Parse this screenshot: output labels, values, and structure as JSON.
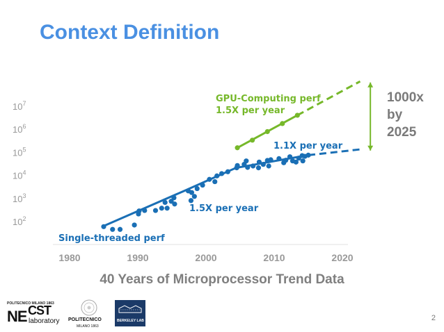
{
  "slide": {
    "title": "Context Definition",
    "subtitle": "40 Years of Microprocessor Trend Data",
    "callout_lines": [
      "1000x",
      "by",
      "2025"
    ],
    "page_number": "2"
  },
  "logos": {
    "necst_top": "POLITECNICO MILANO 1863",
    "necst_ne": "NE",
    "necst_cst": "CST",
    "necst_lab": "laboratory",
    "polimi_name": "POLITECNICO",
    "polimi_sub": "MILANO 1863",
    "berkeley": "BERKELEY LAB"
  },
  "chart_data": {
    "type": "scatter",
    "title": "",
    "xlabel": "",
    "ylabel": "",
    "xlim": [
      1975,
      2025
    ],
    "ylim": [
      1.5,
      7.5
    ],
    "y_scale": "log10",
    "x_ticks": [
      1980,
      1990,
      2000,
      2010,
      2020
    ],
    "x_tick_labels": [
      "1980",
      "1990",
      "2000",
      "2010",
      "2020"
    ],
    "y_ticks": [
      2,
      3,
      4,
      5,
      6,
      7
    ],
    "y_tick_labels": [
      {
        "base": "10",
        "exp": "2"
      },
      {
        "base": "10",
        "exp": "3"
      },
      {
        "base": "10",
        "exp": "4"
      },
      {
        "base": "10",
        "exp": "5"
      },
      {
        "base": "10",
        "exp": "6"
      },
      {
        "base": "10",
        "exp": "7"
      }
    ],
    "colors": {
      "gpu": "#76b82a",
      "cpu": "#1a6fb5",
      "gpu_label": "#76b82a",
      "cpu_label": "#1a6fb5",
      "tick": "#999999"
    },
    "annotations": [
      {
        "text": "GPU-Computing perf",
        "color": "gpu"
      },
      {
        "text": "1.5X per year",
        "color": "gpu"
      },
      {
        "text": "1.1X per year",
        "color": "cpu"
      },
      {
        "text": "1.5X per year",
        "color": "cpu"
      },
      {
        "text": "Single-threaded perf",
        "color": "cpu"
      }
    ],
    "series": [
      {
        "name": "GPU-Computing perf",
        "points": [
          [
            2004.6,
            5.17
          ],
          [
            2006.8,
            5.5
          ],
          [
            2009,
            5.87
          ],
          [
            2011.2,
            6.22
          ],
          [
            2013.4,
            6.58
          ]
        ],
        "trend": [
          [
            2004.6,
            5.17
          ],
          [
            2013.4,
            6.58
          ]
        ],
        "projection": [
          [
            2013.4,
            6.58
          ],
          [
            2022.6,
            8.05
          ]
        ]
      },
      {
        "name": "Single-threaded perf",
        "points": [
          [
            1985,
            1.75
          ],
          [
            1986.3,
            1.63
          ],
          [
            1987.4,
            1.63
          ],
          [
            1989.5,
            1.82
          ],
          [
            1990.1,
            2.3
          ],
          [
            1990.2,
            2.43
          ],
          [
            1991,
            2.45
          ],
          [
            1992.6,
            2.45
          ],
          [
            1993.5,
            2.55
          ],
          [
            1994,
            2.8
          ],
          [
            1994.3,
            2.55
          ],
          [
            1994.9,
            2.85
          ],
          [
            1995.4,
            2.73
          ],
          [
            1995.3,
            3.0
          ],
          [
            1997.4,
            3.3
          ],
          [
            1997.9,
            3.23
          ],
          [
            1997.8,
            2.88
          ],
          [
            1998.3,
            3.06
          ],
          [
            1998.7,
            3.4
          ],
          [
            1999.5,
            3.55
          ],
          [
            2000.5,
            3.8
          ],
          [
            2001.3,
            3.7
          ],
          [
            2001.6,
            3.95
          ],
          [
            2002.3,
            4.05
          ],
          [
            2003.2,
            4.13
          ],
          [
            2004.5,
            4.3
          ],
          [
            2004.6,
            4.4
          ],
          [
            2005.6,
            4.45
          ],
          [
            2005.9,
            4.6
          ],
          [
            2006.1,
            4.32
          ],
          [
            2006.9,
            4.38
          ],
          [
            2007.7,
            4.3
          ],
          [
            2007.8,
            4.55
          ],
          [
            2008.4,
            4.45
          ],
          [
            2009,
            4.62
          ],
          [
            2009.5,
            4.65
          ],
          [
            2009.2,
            4.38
          ],
          [
            2010.7,
            4.7
          ],
          [
            2011.4,
            4.52
          ],
          [
            2011.7,
            4.63
          ],
          [
            2012.3,
            4.78
          ],
          [
            2012.7,
            4.6
          ],
          [
            2013.2,
            4.55
          ],
          [
            2013.6,
            4.72
          ],
          [
            2014.1,
            4.83
          ],
          [
            2014.5,
            4.8
          ],
          [
            2015,
            4.85
          ],
          [
            2014.2,
            4.6
          ]
        ],
        "trend": [
          [
            1984.8,
            1.75
          ],
          [
            1996.8,
            3.3
          ],
          [
            2004.4,
            4.3
          ],
          [
            2015,
            4.85
          ]
        ],
        "projection": [
          [
            2015,
            4.85
          ],
          [
            2022.6,
            5.1
          ]
        ]
      }
    ],
    "bracket": {
      "x": 2024.1,
      "y_from": 5.05,
      "y_to": 8.0
    }
  }
}
